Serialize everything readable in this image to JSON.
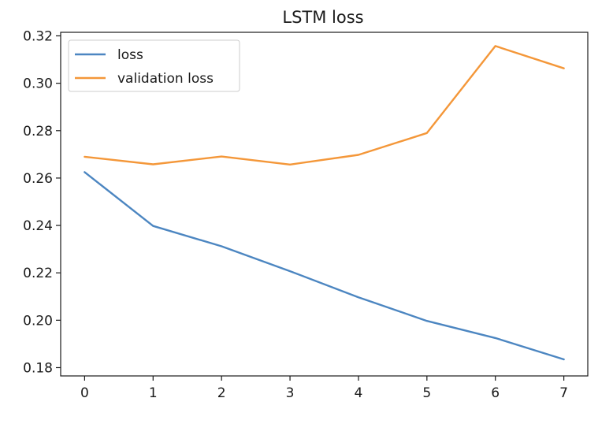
{
  "chart_data": {
    "type": "line",
    "title": "LSTM loss",
    "xlabel": "",
    "ylabel": "",
    "x": [
      0,
      1,
      2,
      3,
      4,
      5,
      6,
      7
    ],
    "xticks": [
      "0",
      "1",
      "2",
      "3",
      "4",
      "5",
      "6",
      "7"
    ],
    "yticks": [
      "0.18",
      "0.20",
      "0.22",
      "0.24",
      "0.26",
      "0.28",
      "0.30",
      "0.32"
    ],
    "xlim": [
      -0.35,
      7.35
    ],
    "ylim": [
      0.1765,
      0.3215
    ],
    "grid": false,
    "legend_position": "top-left",
    "series": [
      {
        "name": "loss",
        "color": "#4c86c1",
        "values": [
          0.2625,
          0.2398,
          0.2312,
          0.2207,
          0.2097,
          0.1997,
          0.1925,
          0.1835
        ]
      },
      {
        "name": "validation loss",
        "color": "#f49739",
        "values": [
          0.269,
          0.2658,
          0.2691,
          0.2657,
          0.2698,
          0.279,
          0.3157,
          0.3063
        ]
      }
    ]
  }
}
